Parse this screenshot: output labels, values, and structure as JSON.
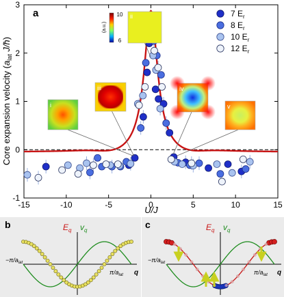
{
  "chart_data": [
    {
      "panel": "a",
      "type": "scatter",
      "xlabel": "U/J",
      "ylabel": "Core expansion velocity (a_lat J/ħ)",
      "ylabel_parts": {
        "main": "Core expansion velocity (",
        "a": "a",
        "sub": "lat",
        "rest": " J/",
        "hbar": "ħ",
        "close": ")"
      },
      "xlim": [
        -15,
        15
      ],
      "ylim": [
        -1.0,
        3.0
      ],
      "xticks": [
        -15,
        -10,
        -5,
        0,
        5,
        10,
        15
      ],
      "yticks": [
        -1,
        0,
        1,
        2,
        3
      ],
      "zero_line": "dashed",
      "legend_position": "top-right",
      "series": [
        {
          "name": "7 E",
          "sub": "r",
          "fill": "#1f2fc8",
          "stroke": "#101a70",
          "points": [
            [
              -12.4,
              -0.35
            ],
            [
              -2.6,
              -0.32
            ],
            [
              -1.9,
              -0.17
            ],
            [
              -0.9,
              0.68
            ],
            [
              -0.45,
              1.6
            ],
            [
              -0.2,
              2.2
            ],
            [
              0.15,
              2.38
            ],
            [
              0.55,
              1.25
            ],
            [
              0.9,
              1.05
            ],
            [
              1.5,
              0.95
            ],
            [
              2.2,
              0.35
            ],
            [
              2.7,
              -0.15
            ],
            [
              4.1,
              -0.26
            ],
            [
              6.8,
              -0.38
            ],
            [
              9.1,
              -0.3
            ],
            [
              10.7,
              -0.45
            ]
          ]
        },
        {
          "name": "8 E",
          "sub": "r",
          "fill": "#4a6ee0",
          "stroke": "#1c2f8a",
          "points": [
            [
              -7.2,
              -0.47
            ],
            [
              -6.3,
              -0.17
            ],
            [
              -5.8,
              -0.35
            ],
            [
              -4.6,
              -0.35
            ],
            [
              -3.6,
              -0.35
            ],
            [
              -2.9,
              -0.25
            ],
            [
              -1.2,
              0.45
            ],
            [
              -0.6,
              1.8
            ],
            [
              0.0,
              2.52
            ],
            [
              0.35,
              2.25
            ],
            [
              0.7,
              1.95
            ],
            [
              1.2,
              1.55
            ],
            [
              1.8,
              0.55
            ],
            [
              3.2,
              -0.27
            ],
            [
              4.6,
              -0.32
            ],
            [
              5.7,
              -0.28
            ],
            [
              8.2,
              -0.5
            ],
            [
              11.2,
              -0.4
            ]
          ]
        },
        {
          "name": "10 E",
          "sub": "r",
          "fill": "#a9c3ef",
          "stroke": "#3a4e90",
          "points": [
            [
              -14.6,
              -0.52
            ],
            [
              -9.8,
              -0.32
            ],
            [
              -8.4,
              -0.38
            ],
            [
              -7.6,
              -0.28
            ],
            [
              -4.8,
              -0.32
            ],
            [
              -3.7,
              -0.33
            ],
            [
              -2.4,
              -0.29
            ],
            [
              -1.55,
              0.95
            ],
            [
              -0.95,
              1.12
            ],
            [
              -0.3,
              2.45
            ],
            [
              0.25,
              1.95
            ],
            [
              0.6,
              1.65
            ],
            [
              1.1,
              0.85
            ],
            [
              2.8,
              -0.25
            ],
            [
              3.7,
              -0.3
            ],
            [
              5.0,
              -0.33
            ],
            [
              7.8,
              -0.3
            ],
            [
              9.6,
              -0.48
            ],
            [
              11.7,
              -0.25
            ]
          ]
        },
        {
          "name": "12 E",
          "sub": "r",
          "fill": "#eef3fb",
          "stroke": "#2a3560",
          "points": [
            [
              -13.3,
              -0.58
            ],
            [
              -10.5,
              -0.42
            ],
            [
              -8.6,
              -0.5
            ],
            [
              -6.8,
              -0.32
            ],
            [
              -5.3,
              -0.3
            ],
            [
              -3.9,
              -0.3
            ],
            [
              -1.4,
              0.92
            ],
            [
              -0.7,
              1.3
            ],
            [
              0.4,
              2.05
            ],
            [
              0.85,
              1.7
            ],
            [
              1.3,
              1.3
            ],
            [
              2.4,
              -0.2
            ],
            [
              4.8,
              -0.28
            ],
            [
              8.4,
              -0.66
            ],
            [
              10.9,
              -0.2
            ]
          ]
        }
      ],
      "theory_curve": {
        "color": "#c81414",
        "peak": 2.88,
        "baseline": -0.05,
        "dip": -0.08
      },
      "insets": [
        {
          "label": "i",
          "pattern": "blob"
        },
        {
          "label": "ii",
          "pattern": "uniform",
          "colorbar_label": "(a.u.)",
          "colorbar_max": "10",
          "colorbar_min": "6"
        },
        {
          "label": "iii",
          "pattern": "square"
        },
        {
          "label": "iv",
          "pattern": "diamond"
        },
        {
          "label": "v",
          "pattern": "ring"
        }
      ]
    },
    {
      "panel": "b",
      "type": "line",
      "ylabel_E": "E",
      "ylabel_v": "v",
      "sub": "q",
      "xlabel_q": "q",
      "left_tick": "−π/a",
      "right_tick": "π/a",
      "lat_sub": "lat",
      "colors": {
        "energy": "#c81414",
        "velocity": "#1e8c1e",
        "points": "#e8e060"
      }
    },
    {
      "panel": "c",
      "type": "line",
      "ylabel_E": "E",
      "ylabel_v": "v",
      "sub": "q",
      "xlabel_q": "q",
      "left_tick": "−π/a",
      "right_tick": "π/a",
      "lat_sub": "lat",
      "colors": {
        "energy": "#c81414",
        "velocity": "#1e8c1e",
        "top_points": "#d42020",
        "bottom_points": "#2040d8",
        "arrows": "#c8d020"
      }
    }
  ]
}
